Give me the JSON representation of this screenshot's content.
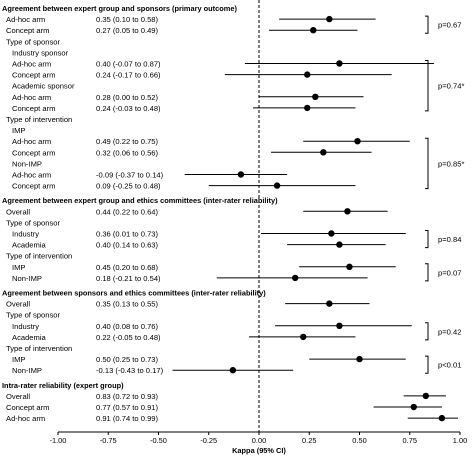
{
  "chart_data": {
    "type": "forest",
    "xlabel": "Kappa (95% CI)",
    "xlim": [
      -1.0,
      1.0
    ],
    "x_ticks": [
      "-1.00",
      "-0.75",
      "-0.50",
      "-0.25",
      "0.00",
      "0.25",
      "0.50",
      "0.75",
      "1.00"
    ],
    "reference_line_x": 0.0,
    "rows": [
      {
        "kind": "header",
        "text": "Agreement between expert group and sponsors (primary outcome)"
      },
      {
        "kind": "data",
        "label": "Ad-hoc arm",
        "indent": 0,
        "ci_text": "0.35 (0.10 to 0.58)",
        "est": 0.35,
        "lo": 0.1,
        "hi": 0.58
      },
      {
        "kind": "data",
        "label": "Concept arm",
        "indent": 0,
        "ci_text": "0.27 (0.05 to 0.49)",
        "est": 0.27,
        "lo": 0.05,
        "hi": 0.49
      },
      {
        "kind": "label",
        "text": "Type of sponsor",
        "indent": 0
      },
      {
        "kind": "label",
        "text": "Industry sponsor",
        "indent": 1
      },
      {
        "kind": "data",
        "label": "Ad-hoc arm",
        "indent": 2,
        "ci_text": "0.40 (-0.07 to 0.87)",
        "est": 0.4,
        "lo": -0.07,
        "hi": 0.87
      },
      {
        "kind": "data",
        "label": "Concept arm",
        "indent": 2,
        "ci_text": "0.24 (-0.17 to 0.66)",
        "est": 0.24,
        "lo": -0.17,
        "hi": 0.66
      },
      {
        "kind": "label",
        "text": "Academic sponsor",
        "indent": 1
      },
      {
        "kind": "data",
        "label": "Ad-hoc arm",
        "indent": 2,
        "ci_text": "0.28 (0.00 to 0.52)",
        "est": 0.28,
        "lo": 0.0,
        "hi": 0.52
      },
      {
        "kind": "data",
        "label": "Concept arm",
        "indent": 2,
        "ci_text": "0.24 (-0.03 to 0.48)",
        "est": 0.24,
        "lo": -0.03,
        "hi": 0.48
      },
      {
        "kind": "label",
        "text": "Type of intervention",
        "indent": 0
      },
      {
        "kind": "label",
        "text": "IMP",
        "indent": 1
      },
      {
        "kind": "data",
        "label": "Ad-hoc arm",
        "indent": 2,
        "ci_text": "0.49 (0.22 to 0.75)",
        "est": 0.49,
        "lo": 0.22,
        "hi": 0.75
      },
      {
        "kind": "data",
        "label": "Concept arm",
        "indent": 2,
        "ci_text": "0.32 (0.06 to 0.56)",
        "est": 0.32,
        "lo": 0.06,
        "hi": 0.56
      },
      {
        "kind": "label",
        "text": "Non-IMP",
        "indent": 1
      },
      {
        "kind": "data",
        "label": "Ad-hoc arm",
        "indent": 2,
        "ci_text": "-0.09 (-0.37 to 0.14)",
        "est": -0.09,
        "lo": -0.37,
        "hi": 0.14
      },
      {
        "kind": "data",
        "label": "Concept arm",
        "indent": 2,
        "ci_text": "0.09 (-0.25 to 0.48)",
        "est": 0.09,
        "lo": -0.25,
        "hi": 0.48
      },
      {
        "kind": "gap"
      },
      {
        "kind": "header",
        "text": "Agreement between expert group and ethics committees (inter-rater reliability)"
      },
      {
        "kind": "data",
        "label": "Overall",
        "indent": 0,
        "ci_text": "0.44 (0.22 to 0.64)",
        "est": 0.44,
        "lo": 0.22,
        "hi": 0.64
      },
      {
        "kind": "label",
        "text": "Type of sponsor",
        "indent": 0
      },
      {
        "kind": "data",
        "label": "Industry",
        "indent": 1,
        "ci_text": "0.36 (0.01 to 0.73)",
        "est": 0.36,
        "lo": 0.01,
        "hi": 0.73
      },
      {
        "kind": "data",
        "label": "Academia",
        "indent": 1,
        "ci_text": "0.40 (0.14 to 0.63)",
        "est": 0.4,
        "lo": 0.14,
        "hi": 0.63
      },
      {
        "kind": "label",
        "text": "Type of intervention",
        "indent": 0
      },
      {
        "kind": "data",
        "label": "IMP",
        "indent": 1,
        "ci_text": "0.45 (0.20 to 0.68)",
        "est": 0.45,
        "lo": 0.2,
        "hi": 0.68
      },
      {
        "kind": "data",
        "label": "Non-IMP",
        "indent": 1,
        "ci_text": "0.18 (-0.21 to 0.54)",
        "est": 0.18,
        "lo": -0.21,
        "hi": 0.54
      },
      {
        "kind": "gap"
      },
      {
        "kind": "header",
        "text": "Agreement between sponsors and ethics committees (inter-rater reliability)"
      },
      {
        "kind": "data",
        "label": "Overall",
        "indent": 0,
        "ci_text": "0.35 (0.13 to 0.55)",
        "est": 0.35,
        "lo": 0.13,
        "hi": 0.55
      },
      {
        "kind": "label",
        "text": "Type of sponsor",
        "indent": 0
      },
      {
        "kind": "data",
        "label": "Industry",
        "indent": 1,
        "ci_text": "0.40 (0.08 to 0.76)",
        "est": 0.4,
        "lo": 0.08,
        "hi": 0.76
      },
      {
        "kind": "data",
        "label": "Academia",
        "indent": 1,
        "ci_text": "0.22 (-0.05 to 0.48)",
        "est": 0.22,
        "lo": -0.05,
        "hi": 0.48
      },
      {
        "kind": "label",
        "text": "Type of intervention",
        "indent": 0
      },
      {
        "kind": "data",
        "label": "IMP",
        "indent": 1,
        "ci_text": "0.50 (0.25 to 0.73)",
        "est": 0.5,
        "lo": 0.25,
        "hi": 0.73
      },
      {
        "kind": "data",
        "label": "Non-IMP",
        "indent": 1,
        "ci_text": "-0.13 (-0.43 to 0.17)",
        "est": -0.13,
        "lo": -0.43,
        "hi": 0.17
      },
      {
        "kind": "gap"
      },
      {
        "kind": "header",
        "text": "Intra-rater reliability (expert group)"
      },
      {
        "kind": "data",
        "label": "Overall",
        "indent": 0,
        "ci_text": "0.83 (0.72 to 0.93)",
        "est": 0.83,
        "lo": 0.72,
        "hi": 0.93
      },
      {
        "kind": "data",
        "label": "Concept arm",
        "indent": 0,
        "ci_text": "0.77 (0.57 to 0.91)",
        "est": 0.77,
        "lo": 0.57,
        "hi": 0.91
      },
      {
        "kind": "data",
        "label": "Ad-hoc arm",
        "indent": 0,
        "ci_text": "0.91 (0.74 to 0.99)",
        "est": 0.91,
        "lo": 0.74,
        "hi": 0.99
      }
    ],
    "annotations": [
      {
        "text": "p=0.67",
        "from_row": 1,
        "to_row": 2
      },
      {
        "text": "p=0.74*",
        "from_row": 5,
        "to_row": 9
      },
      {
        "text": "p=0.85*",
        "from_row": 12,
        "to_row": 16
      },
      {
        "text": "p=0.84",
        "from_row": 21,
        "to_row": 22
      },
      {
        "text": "p=0.07",
        "from_row": 24,
        "to_row": 25
      },
      {
        "text": "p=0.42",
        "from_row": 30,
        "to_row": 31
      },
      {
        "text": "p<0.01",
        "from_row": 33,
        "to_row": 34
      }
    ]
  }
}
